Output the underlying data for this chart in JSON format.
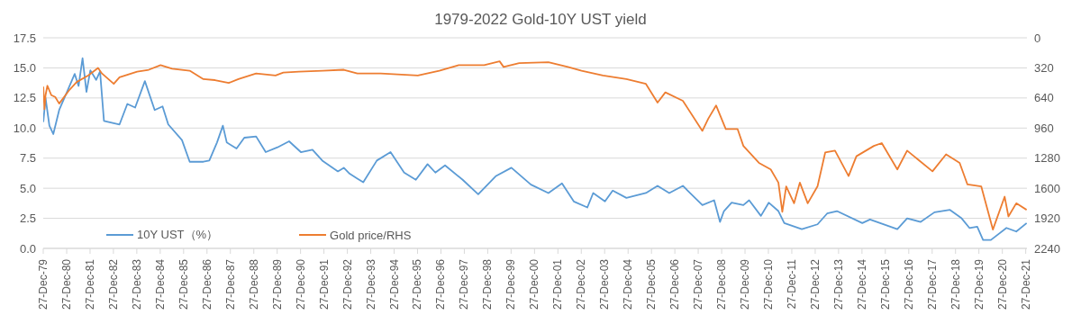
{
  "chart_data": {
    "type": "line",
    "title": "1979-2022 Gold-10Y UST yield",
    "xlim": [
      "1979-12-27",
      "2022-01-15"
    ],
    "xticks": [
      {
        "value": "1979-12-27",
        "label": "27-Dec-79"
      },
      {
        "value": "1980-12-27",
        "label": "27-Dec-80"
      },
      {
        "value": "1981-12-27",
        "label": "27-Dec-81"
      },
      {
        "value": "1982-12-27",
        "label": "27-Dec-82"
      },
      {
        "value": "1983-12-27",
        "label": "27-Dec-83"
      },
      {
        "value": "1984-12-27",
        "label": "27-Dec-84"
      },
      {
        "value": "1985-12-27",
        "label": "27-Dec-85"
      },
      {
        "value": "1986-12-27",
        "label": "27-Dec-86"
      },
      {
        "value": "1987-12-27",
        "label": "27-Dec-87"
      },
      {
        "value": "1988-12-27",
        "label": "27-Dec-88"
      },
      {
        "value": "1989-12-27",
        "label": "27-Dec-89"
      },
      {
        "value": "1990-12-27",
        "label": "27-Dec-90"
      },
      {
        "value": "1991-12-27",
        "label": "27-Dec-91"
      },
      {
        "value": "1992-12-27",
        "label": "27-Dec-92"
      },
      {
        "value": "1993-12-27",
        "label": "27-Dec-93"
      },
      {
        "value": "1994-12-27",
        "label": "27-Dec-94"
      },
      {
        "value": "1995-12-27",
        "label": "27-Dec-95"
      },
      {
        "value": "1996-12-27",
        "label": "27-Dec-96"
      },
      {
        "value": "1997-12-27",
        "label": "27-Dec-97"
      },
      {
        "value": "1998-12-27",
        "label": "27-Dec-98"
      },
      {
        "value": "1999-12-27",
        "label": "27-Dec-99"
      },
      {
        "value": "2000-12-27",
        "label": "27-Dec-00"
      },
      {
        "value": "2001-12-27",
        "label": "27-Dec-01"
      },
      {
        "value": "2002-12-27",
        "label": "27-Dec-02"
      },
      {
        "value": "2003-12-27",
        "label": "27-Dec-03"
      },
      {
        "value": "2004-12-27",
        "label": "27-Dec-04"
      },
      {
        "value": "2005-12-27",
        "label": "27-Dec-05"
      },
      {
        "value": "2006-12-27",
        "label": "27-Dec-06"
      },
      {
        "value": "2007-12-27",
        "label": "27-Dec-07"
      },
      {
        "value": "2008-12-27",
        "label": "27-Dec-08"
      },
      {
        "value": "2009-12-27",
        "label": "27-Dec-09"
      },
      {
        "value": "2010-12-27",
        "label": "27-Dec-10"
      },
      {
        "value": "2011-12-27",
        "label": "27-Dec-11"
      },
      {
        "value": "2012-12-27",
        "label": "27-Dec-12"
      },
      {
        "value": "2013-12-27",
        "label": "27-Dec-13"
      },
      {
        "value": "2014-12-27",
        "label": "27-Dec-14"
      },
      {
        "value": "2015-12-27",
        "label": "27-Dec-15"
      },
      {
        "value": "2016-12-27",
        "label": "27-Dec-16"
      },
      {
        "value": "2017-12-27",
        "label": "27-Dec-17"
      },
      {
        "value": "2018-12-27",
        "label": "27-Dec-18"
      },
      {
        "value": "2019-12-27",
        "label": "27-Dec-19"
      },
      {
        "value": "2020-12-27",
        "label": "27-Dec-20"
      },
      {
        "value": "2021-12-27",
        "label": "27-Dec-21"
      }
    ],
    "ylim": [
      0,
      17.5
    ],
    "yticks": [
      {
        "value": 0,
        "label": "0.0"
      },
      {
        "value": 2.5,
        "label": "2.5"
      },
      {
        "value": 5,
        "label": "5.0"
      },
      {
        "value": 7.5,
        "label": "7.5"
      },
      {
        "value": 10,
        "label": "10.0"
      },
      {
        "value": 12.5,
        "label": "12.5"
      },
      {
        "value": 15,
        "label": "15.0"
      },
      {
        "value": 17.5,
        "label": "17.5"
      }
    ],
    "y2lim": [
      2240,
      0
    ],
    "y2ticks": [
      0,
      320,
      640,
      960,
      1280,
      1600,
      1920,
      2240
    ],
    "grid": "y",
    "legend": "bottom left",
    "marker": "none",
    "line_style": "solid",
    "series": [
      {
        "name": "10Y UST（%）",
        "color": "#5b9bd5",
        "x": [
          "1979-12-28",
          "1980-02",
          "1980-04",
          "1980-06",
          "1980-09",
          "1981-01",
          "1981-05",
          "1981-07",
          "1981-09",
          "1981-11",
          "1982-01",
          "1982-04",
          "1982-06",
          "1982-08",
          "1983-04",
          "1983-08",
          "1983-12",
          "1984-05",
          "1984-10",
          "1985-02",
          "1985-05",
          "1985-12",
          "1986-04",
          "1986-11",
          "1987-02",
          "1987-06",
          "1987-09",
          "1987-11",
          "1988-04",
          "1988-08",
          "1989-02",
          "1989-07",
          "1990-01",
          "1990-07",
          "1991-01",
          "1991-07",
          "1991-12",
          "1992-08",
          "1992-11",
          "1993-02",
          "1993-06",
          "1993-09",
          "1994-04",
          "1994-11",
          "1995-06",
          "1995-12",
          "1996-06",
          "1996-10",
          "1997-03",
          "1997-12",
          "1998-08",
          "1999-05",
          "2000-01",
          "2000-11",
          "2001-08",
          "2002-03",
          "2002-09",
          "2003-04",
          "2003-07",
          "2004-01",
          "2004-05",
          "2004-12",
          "2005-10",
          "2006-04",
          "2006-10",
          "2007-05",
          "2008-03",
          "2008-09",
          "2008-12",
          "2009-02",
          "2009-06",
          "2009-12",
          "2010-03",
          "2010-09",
          "2011-01",
          "2011-06",
          "2011-09",
          "2012-06",
          "2013-02",
          "2013-07",
          "2013-12",
          "2015-01",
          "2015-05",
          "2016-07",
          "2016-12",
          "2017-07",
          "2018-02",
          "2018-10",
          "2019-04",
          "2019-08",
          "2019-12",
          "2020-03",
          "2020-07",
          "2021-03",
          "2021-08",
          "2022-01-10"
        ],
        "values": [
          10.5,
          12.5,
          10.2,
          9.5,
          11.5,
          13.0,
          14.5,
          13.5,
          15.8,
          13.0,
          14.8,
          14.0,
          14.7,
          10.6,
          10.3,
          12.0,
          11.7,
          13.9,
          11.5,
          11.8,
          10.3,
          9.0,
          7.2,
          7.2,
          7.3,
          8.8,
          10.2,
          8.8,
          8.3,
          9.2,
          9.3,
          8.0,
          8.4,
          8.9,
          8.0,
          8.2,
          7.3,
          6.4,
          6.7,
          6.2,
          5.8,
          5.5,
          7.3,
          8.0,
          6.3,
          5.7,
          7.0,
          6.3,
          6.9,
          5.7,
          4.5,
          6.0,
          6.7,
          5.3,
          4.6,
          5.4,
          3.9,
          3.4,
          4.6,
          3.9,
          4.8,
          4.2,
          4.6,
          5.2,
          4.6,
          5.2,
          3.6,
          4.0,
          2.2,
          3.1,
          3.8,
          3.6,
          4.0,
          2.7,
          3.8,
          3.1,
          2.1,
          1.6,
          2.0,
          2.9,
          3.1,
          2.1,
          2.4,
          1.6,
          2.5,
          2.2,
          3.0,
          3.2,
          2.5,
          1.7,
          1.8,
          0.7,
          0.7,
          1.7,
          1.4,
          2.1
        ]
      },
      {
        "name": "Gold price/RHS",
        "color": "#ed7d31",
        "axis": "y2",
        "x": [
          "1979-12-28",
          "1980-01-15",
          "1980-02",
          "1980-03",
          "1980-05",
          "1980-07",
          "1980-09",
          "1981-02",
          "1981-06",
          "1981-12",
          "1982-05",
          "1982-07",
          "1983-01",
          "1983-04",
          "1984-01",
          "1984-07",
          "1985-01",
          "1985-07",
          "1986-04",
          "1986-11",
          "1987-05",
          "1987-12",
          "1988-05",
          "1989-02",
          "1989-12",
          "1990-04",
          "1990-12",
          "1991-12",
          "1992-11",
          "1993-06",
          "1994-06",
          "1996-01",
          "1996-12",
          "1997-10",
          "1998-11",
          "1999-07",
          "1999-09",
          "2000-05",
          "2001-08",
          "2002-06",
          "2003-01",
          "2003-12",
          "2004-12",
          "2005-10",
          "2006-04",
          "2006-08",
          "2007-05",
          "2008-03",
          "2008-06",
          "2008-10",
          "2009-03",
          "2009-09",
          "2009-12",
          "2010-08",
          "2011-02",
          "2011-06",
          "2011-08",
          "2011-10",
          "2012-02",
          "2012-05",
          "2012-09",
          "2013-02",
          "2013-06",
          "2013-11",
          "2014-06",
          "2014-10",
          "2015-07",
          "2015-11",
          "2016-07",
          "2016-12",
          "2018-01",
          "2018-08",
          "2019-03",
          "2019-07",
          "2020-02",
          "2020-08",
          "2021-02",
          "2021-04",
          "2021-08",
          "2022-01-10"
        ],
        "values": [
          520,
          760,
          610,
          510,
          610,
          630,
          700,
          560,
          470,
          400,
          320,
          380,
          490,
          420,
          360,
          340,
          290,
          330,
          350,
          440,
          450,
          480,
          440,
          380,
          400,
          370,
          360,
          350,
          340,
          380,
          380,
          400,
          350,
          290,
          290,
          250,
          310,
          270,
          260,
          310,
          350,
          400,
          440,
          490,
          690,
          580,
          670,
          990,
          860,
          720,
          970,
          970,
          1150,
          1330,
          1400,
          1540,
          1850,
          1580,
          1760,
          1540,
          1760,
          1580,
          1220,
          1200,
          1470,
          1260,
          1150,
          1120,
          1400,
          1200,
          1420,
          1240,
          1330,
          1560,
          1580,
          2040,
          1690,
          1900,
          1760,
          1830
        ]
      }
    ]
  }
}
